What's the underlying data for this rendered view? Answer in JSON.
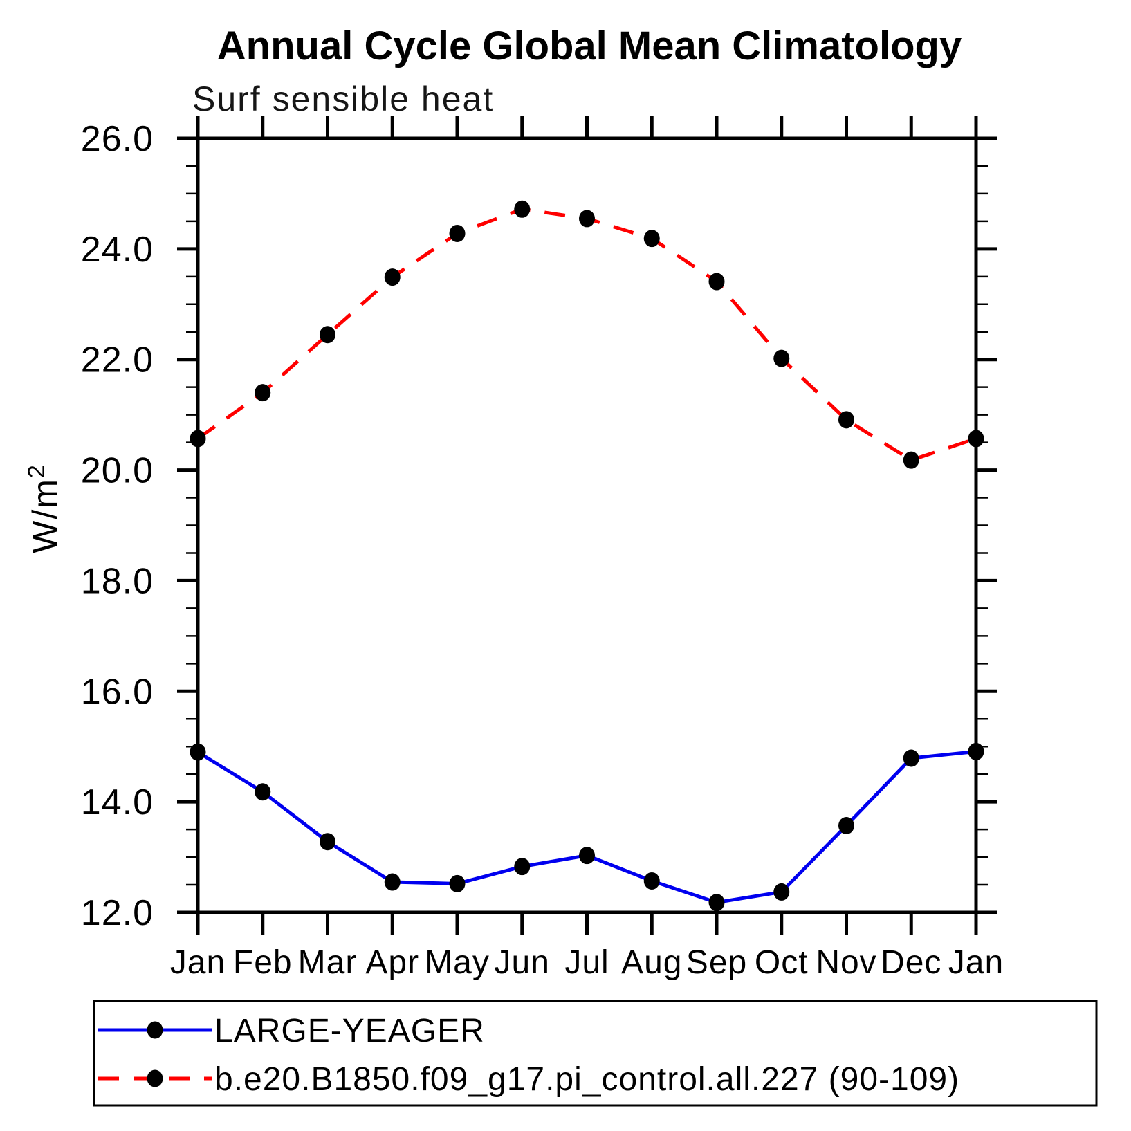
{
  "page": {
    "background": "#FFFFFF"
  },
  "chart_data": {
    "type": "line",
    "title": "Annual Cycle Global Mean Climatology",
    "subtitle": "Surf sensible heat",
    "ylabel": "W/m²",
    "xlabel": "",
    "categories": [
      "Jan",
      "Feb",
      "Mar",
      "Apr",
      "May",
      "Jun",
      "Jul",
      "Aug",
      "Sep",
      "Oct",
      "Nov",
      "Dec",
      "Jan"
    ],
    "ylim": [
      12.0,
      26.0
    ],
    "y_major_step": 2.0,
    "y_minor_step": 0.5,
    "y_tick_labels": [
      "12.0",
      "14.0",
      "16.0",
      "18.0",
      "20.0",
      "22.0",
      "24.0",
      "26.0"
    ],
    "grid": false,
    "legend_position": "bottom-left-box",
    "axis_color": "#000000",
    "marker_color": "#000000",
    "series": [
      {
        "name": "LARGE-YEAGER",
        "color": "#0000EF",
        "style": "solid",
        "marker": "filled-circle",
        "values": [
          14.9,
          14.18,
          13.28,
          12.55,
          12.52,
          12.83,
          13.03,
          12.57,
          12.18,
          12.37,
          13.57,
          14.79,
          14.91
        ]
      },
      {
        "name": "b.e20.B1850.f09_g17.pi_control.all.227 (90-109)",
        "color": "#FF0000",
        "style": "dashed",
        "marker": "filled-circle",
        "values": [
          20.57,
          21.4,
          22.45,
          23.49,
          24.28,
          24.72,
          24.55,
          24.19,
          23.41,
          22.02,
          20.91,
          20.18,
          20.57
        ]
      }
    ]
  }
}
